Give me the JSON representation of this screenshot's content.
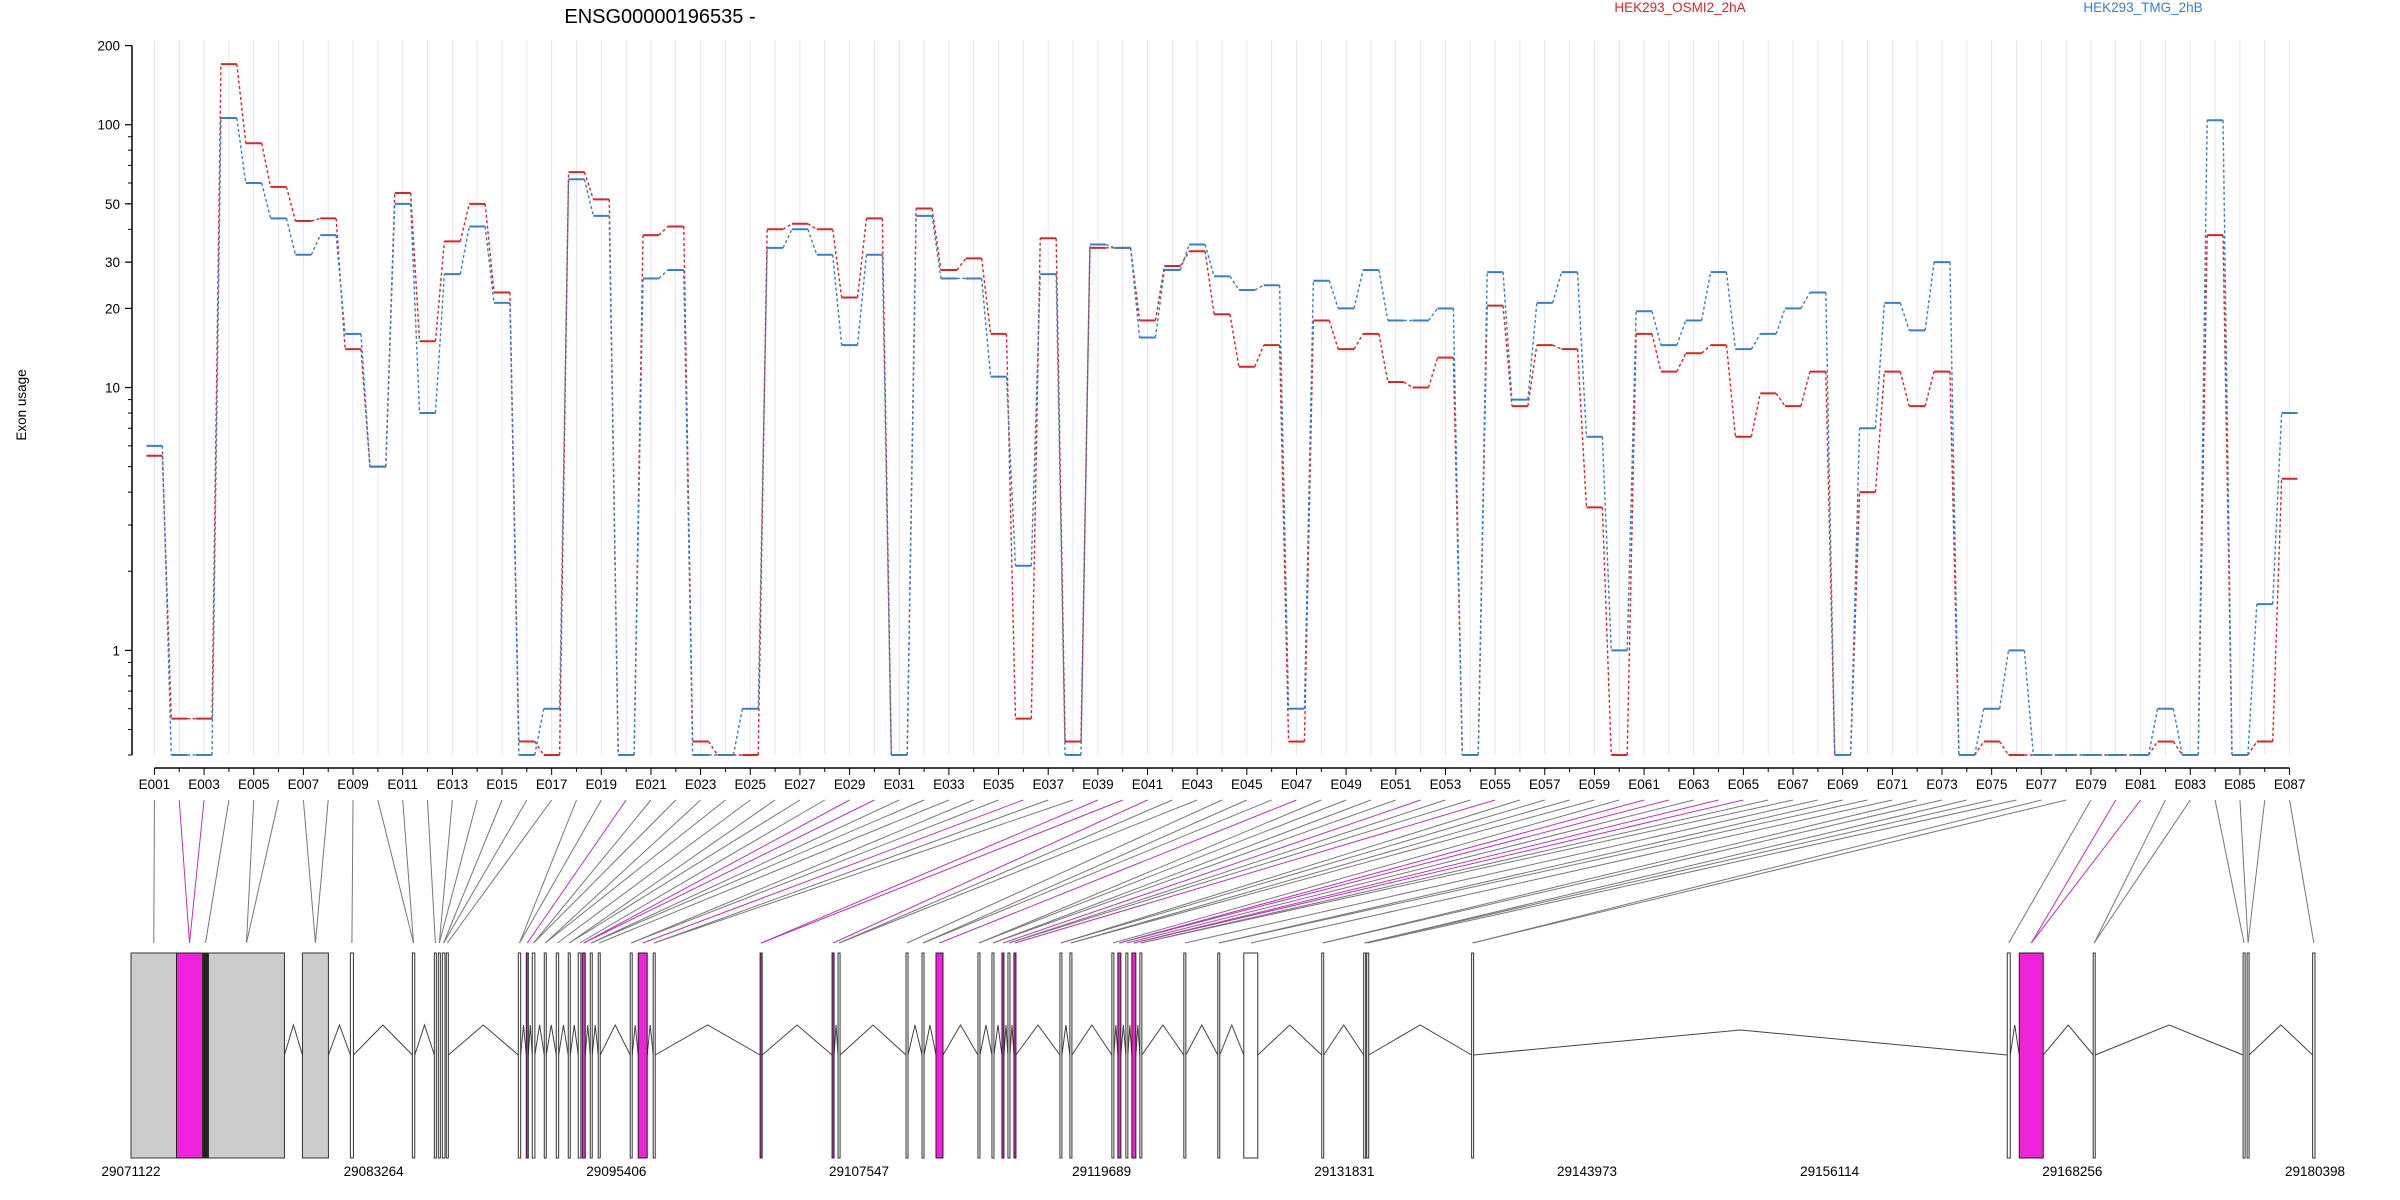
{
  "chart_data": {
    "type": "line",
    "title": "ENSG00000196535 -",
    "ylabel": "Exon usage",
    "y_scale": "log",
    "ylim": [
      0.4,
      210
    ],
    "y_ticks": [
      1,
      10,
      20,
      30,
      50,
      100,
      200
    ],
    "x_tick_labels": [
      "E001",
      "E003",
      "E005",
      "E007",
      "E009",
      "E011",
      "E013",
      "E015",
      "E017",
      "E019",
      "E021",
      "E023",
      "E025",
      "E027",
      "E029",
      "E031",
      "E033",
      "E035",
      "E037",
      "E039",
      "E041",
      "E043",
      "E045",
      "E047",
      "E049",
      "E051",
      "E053",
      "E055",
      "E057",
      "E059",
      "E061",
      "E063",
      "E065",
      "E067",
      "E069",
      "E071",
      "E073",
      "E075",
      "E077",
      "E079",
      "E081",
      "E083",
      "E085",
      "E087"
    ],
    "categories": [
      "E001",
      "E002",
      "E003",
      "E004",
      "E005",
      "E006",
      "E007",
      "E008",
      "E009",
      "E010",
      "E011",
      "E012",
      "E013",
      "E014",
      "E015",
      "E016",
      "E017",
      "E018",
      "E019",
      "E020",
      "E021",
      "E022",
      "E023",
      "E024",
      "E025",
      "E026",
      "E027",
      "E028",
      "E029",
      "E030",
      "E031",
      "E032",
      "E033",
      "E034",
      "E035",
      "E036",
      "E037",
      "E038",
      "E039",
      "E040",
      "E041",
      "E042",
      "E043",
      "E044",
      "E045",
      "E046",
      "E047",
      "E048",
      "E049",
      "E050",
      "E051",
      "E052",
      "E053",
      "E054",
      "E055",
      "E056",
      "E057",
      "E058",
      "E059",
      "E060",
      "E061",
      "E062",
      "E063",
      "E064",
      "E065",
      "E066",
      "E067",
      "E068",
      "E069",
      "E070",
      "E071",
      "E072",
      "E073",
      "E074",
      "E075",
      "E076",
      "E077",
      "E078",
      "E079",
      "E080",
      "E081",
      "E082",
      "E083",
      "E084",
      "E085",
      "E086",
      "E087"
    ],
    "series": [
      {
        "name": "HEK293_OSMI2_2hA",
        "color": "#d62728",
        "values": [
          5.5,
          0.55,
          0.55,
          170,
          85,
          58,
          43,
          44,
          14,
          5,
          55,
          15,
          36,
          50,
          23,
          0.45,
          0.4,
          66,
          52,
          0.4,
          38,
          41,
          0.45,
          0.4,
          0.4,
          40,
          42,
          40,
          22,
          44,
          0.4,
          48,
          28,
          31,
          16,
          0.55,
          37,
          0.45,
          34,
          34,
          18,
          29,
          33,
          19,
          12,
          14.5,
          0.45,
          18,
          14,
          16,
          10.5,
          10,
          13,
          0.4,
          20.5,
          8.5,
          14.5,
          14,
          3.5,
          0.4,
          16,
          11.5,
          13.5,
          14.5,
          6.5,
          9.5,
          8.5,
          11.5,
          0.4,
          4,
          11.5,
          8.5,
          11.5,
          0.4,
          0.45,
          0.4,
          0.4,
          0.4,
          0.4,
          0.4,
          0.4,
          0.45,
          0.4,
          38,
          0.4,
          0.45,
          4.5
        ]
      },
      {
        "name": "HEK293_TMG_2hB",
        "color": "#3a7fc1",
        "values": [
          6,
          0.4,
          0.4,
          106,
          60,
          44,
          32,
          38,
          16,
          5,
          50,
          8,
          27,
          41,
          21,
          0.4,
          0.6,
          62,
          45,
          0.4,
          26,
          28,
          0.4,
          0.4,
          0.6,
          34,
          40,
          32,
          14.5,
          32,
          0.4,
          45,
          26,
          26,
          11,
          2.1,
          27,
          0.4,
          35,
          34,
          15.5,
          28,
          35,
          26.5,
          23.5,
          24.5,
          0.6,
          25.5,
          20,
          28,
          18,
          18,
          20,
          0.4,
          27.5,
          9,
          21,
          27.5,
          6.5,
          1,
          19.5,
          14.5,
          18,
          27.5,
          14,
          16,
          20,
          23,
          0.4,
          7,
          21,
          16.5,
          30,
          0.4,
          0.6,
          1,
          0.4,
          0.4,
          0.4,
          0.4,
          0.4,
          0.6,
          0.4,
          104,
          0.4,
          1.5,
          8
        ]
      }
    ],
    "legend": "top",
    "grid": "vertical",
    "genomic_ticks": [
      "29071122",
      "29083264",
      "29095406",
      "29107547",
      "29119689",
      "29131831",
      "29143973",
      "29156114",
      "29168256",
      "29180398"
    ]
  }
}
